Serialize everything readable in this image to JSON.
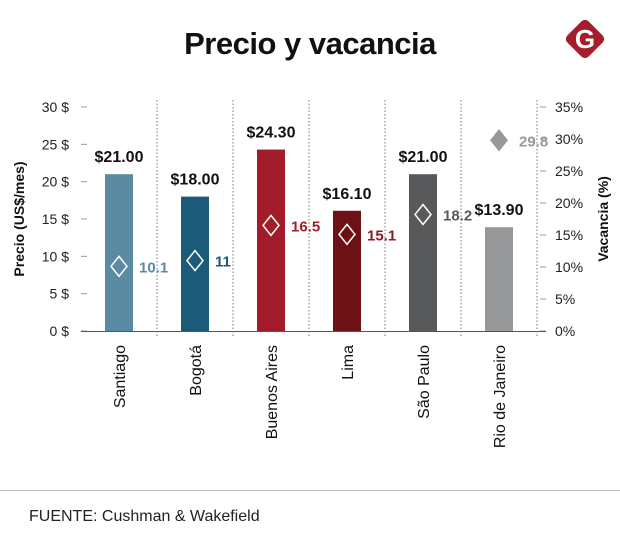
{
  "title": "Precio y vacancia",
  "logo_text": "G",
  "source": "FUENTE: Cushman & Wakefield",
  "chart_data": {
    "type": "bar",
    "title": "Precio y vacancia",
    "categories": [
      "Santiago",
      "Bogotá",
      "Buenos Aires",
      "Lima",
      "São Paulo",
      "Rio de Janeiro"
    ],
    "series": [
      {
        "name": "Precio (US$/mes)",
        "axis": "left",
        "values": [
          21.0,
          18.0,
          24.3,
          16.1,
          21.0,
          13.9
        ],
        "labels": [
          "$21.00",
          "$18.00",
          "$24.30",
          "$16.10",
          "$21.00",
          "$13.90"
        ]
      },
      {
        "name": "Vacancia (%)",
        "axis": "right",
        "marker": "diamond",
        "values": [
          10.1,
          11,
          16.5,
          15.1,
          18.2,
          29.8
        ],
        "labels": [
          "10.1",
          "11",
          "16.5",
          "15.1",
          "18.2",
          "29.8"
        ]
      }
    ],
    "colors": [
      "#5b8aa3",
      "#1b5a78",
      "#a31c29",
      "#6e1115",
      "#58595b",
      "#97989a"
    ],
    "label_colors": [
      "#5b8aa3",
      "#1b5a78",
      "#a31c29",
      "#8c1a20",
      "#58595b",
      "#97989a"
    ],
    "ylabel": "Precio (US$/mes)",
    "y2label": "Vacancia (%)",
    "ylim": [
      0,
      30
    ],
    "y2lim": [
      0,
      35
    ],
    "yticks": [
      "0 $",
      "5 $",
      "10 $",
      "15 $",
      "20 $",
      "25 $",
      "30 $"
    ],
    "y2ticks": [
      "0%",
      "5%",
      "10%",
      "15%",
      "20%",
      "25%",
      "30%",
      "35%"
    ],
    "grid": false,
    "legend": "none"
  }
}
